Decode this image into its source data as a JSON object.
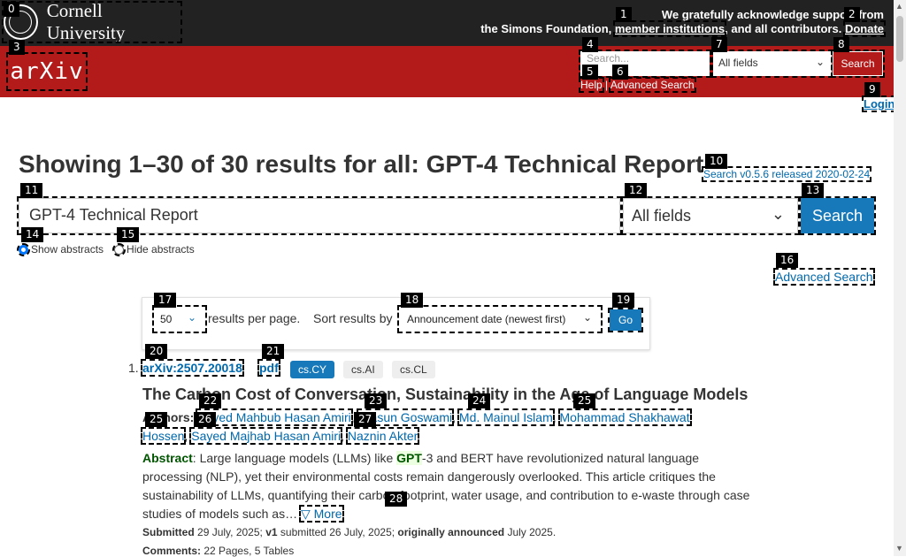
{
  "banner": {
    "institution": "Cornell University",
    "ack_line1": "We gratefully acknowledge support from",
    "ack_line2_pre": "the Simons Foundation,",
    "member_link": "member institutions",
    "ack_line2_mid": ", and all contributors.",
    "donate_link": "Donate"
  },
  "header": {
    "logo": "arXiv",
    "search_placeholder": "Search...",
    "field_select": "All fields",
    "search_button": "Search",
    "help_link": "Help",
    "separator": "|",
    "advanced_link": "Advanced Search",
    "login_link": "Login"
  },
  "main": {
    "heading": "Showing 1–30 of 30 results for all: GPT-4 Technical Report",
    "release_link": "Search v0.5.6 released 2020-02-24",
    "search_value": "GPT-4 Technical Report",
    "field_select": "All fields",
    "search_button": "Search",
    "show_abstracts": "Show abstracts",
    "hide_abstracts": "Hide abstracts",
    "advanced_link": "Advanced Search"
  },
  "controls": {
    "per_page_value": "50",
    "per_page_label": "results per page.",
    "sort_label": "Sort results by",
    "sort_value": "Announcement date (newest first)",
    "go_button": "Go"
  },
  "result": {
    "number": "1.",
    "arxiv_id": "arXiv:2507.20018",
    "pdf_link": "pdf",
    "categories": [
      {
        "label": "cs.CY",
        "primary": true
      },
      {
        "label": "cs.AI",
        "primary": false
      },
      {
        "label": "cs.CL",
        "primary": false
      }
    ],
    "title": "The Carbon Cost of Conversation, Sustainability in the Age of Language Models",
    "authors_label": "Authors:",
    "authors": [
      "Sayed Mahbub Hasan Amiri",
      "Prasun Goswami",
      "Md. Mainul Islam",
      "Mohammad Shakhawat Hossen",
      "Sayed Majhab Hasan Amiri",
      "Naznin Akter"
    ],
    "abstract_label": "Abstract",
    "abstract_pre": ": Large language models (LLMs) like ",
    "abstract_hl": "GPT",
    "abstract_post": "-3 and BERT have revolutionized natural language processing (NLP), yet their environmental costs remain dangerously overlooked. This article critiques the sustainability of LLMs, quantifying their carbon footprint, water usage, and contribution to e-waste through case studies of models such as…",
    "more_link": "▽ More",
    "submitted_label": "Submitted",
    "submitted_date": "29 July, 2025;",
    "v1_label": "v1",
    "v1_text": "submitted 26 July, 2025;",
    "announced_label": "originally announced",
    "announced_date": "July 2025.",
    "comments_label": "Comments:",
    "comments_text": "22 Pages, 5 Tables"
  },
  "colors": {
    "arxiv_red": "#b31b1b",
    "banner_dark": "#222222",
    "link_blue": "#0068ac",
    "button_blue": "#1779ba"
  }
}
